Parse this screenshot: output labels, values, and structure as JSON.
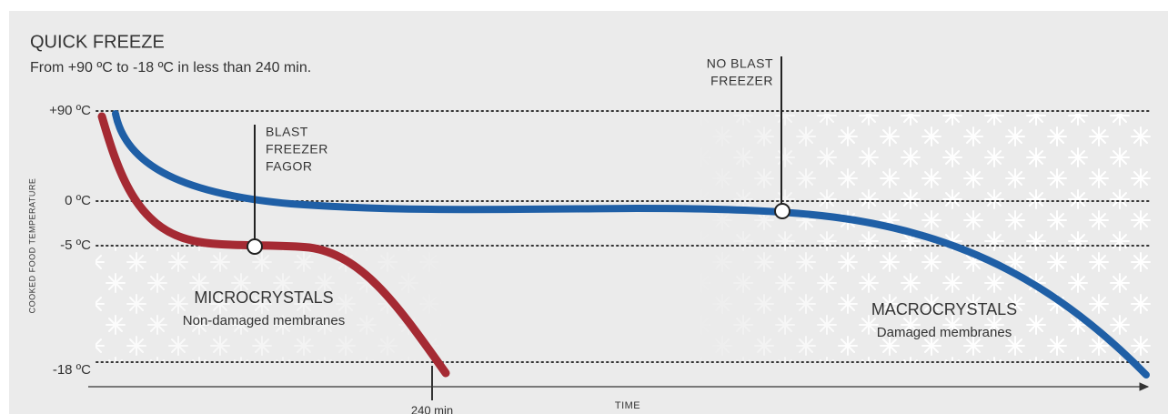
{
  "header": {
    "title": "QUICK FREEZE",
    "subtitle": "From +90 ºC to -18 ºC in less than 240 min."
  },
  "axes": {
    "y_label": "COOKED FOOD TEMPERATURE",
    "x_label": "TIME",
    "levels": [
      "+90 ºC",
      "0 ºC",
      "-5 ºC",
      "-18 ºC"
    ],
    "time_marker": "240 min"
  },
  "callouts": [
    {
      "lines": [
        "BLAST",
        "FREEZER",
        "FAGOR"
      ]
    },
    {
      "lines": [
        "NO BLAST",
        "FREEZER"
      ]
    }
  ],
  "regions": [
    {
      "title": "MICROCRYSTALS",
      "subtitle": "Non-damaged membranes"
    },
    {
      "title": "MACROCRYSTALS",
      "subtitle": "Damaged membranes"
    }
  ]
}
